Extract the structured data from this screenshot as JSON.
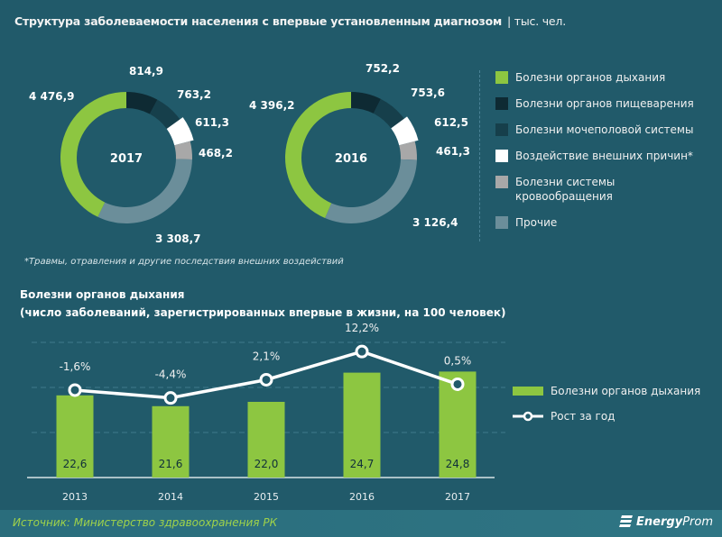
{
  "title": "Структура  заболеваемости  населения  с впервые  установленным  диагнозом",
  "title_unit": "| тыс. чел.",
  "colors": {
    "background": "#215a6a",
    "green": "#8dc641",
    "dark": "#0e2a33",
    "darkteal": "#163f4b",
    "white": "#ffffff",
    "gray": "#a8a8a8",
    "slate": "#6b8e9a"
  },
  "chart_data": [
    {
      "type": "pie",
      "title": "2017",
      "center_label": "2017",
      "categories": [
        "Болезни органов дыхания",
        "Болезни органов пищеварения",
        "Болезни мочеполовой системы",
        "Воздействие внешних причин*",
        "Болезни системы кровообращения",
        "Прочие"
      ],
      "values": [
        4476.9,
        814.9,
        763.2,
        611.3,
        468.2,
        3308.7
      ],
      "labels": [
        "4 476,9",
        "814,9",
        "763,2",
        "611,3",
        "468,2",
        "3 308,7"
      ]
    },
    {
      "type": "pie",
      "title": "2016",
      "center_label": "2016",
      "categories": [
        "Болезни органов дыхания",
        "Болезни органов пищеварения",
        "Болезни мочеполовой системы",
        "Воздействие внешних причин*",
        "Болезни системы кровообращения",
        "Прочие"
      ],
      "values": [
        4396.2,
        752.2,
        753.6,
        612.5,
        461.3,
        3126.4
      ],
      "labels": [
        "4 396,2",
        "752,2",
        "753,6",
        "612,5",
        "461,3",
        "3 126,4"
      ]
    },
    {
      "type": "bar",
      "title": "Болезни органов дыхания",
      "subtitle": "(число заболеваний,  зарегистрированных  впервые  в жизни, на 100 человек)",
      "categories": [
        "2013",
        "2014",
        "2015",
        "2016",
        "2017"
      ],
      "series": [
        {
          "name": "Болезни органов дыхания",
          "type": "bar",
          "values": [
            22.6,
            21.6,
            22.0,
            24.7,
            24.8
          ],
          "labels": [
            "22,6",
            "21,6",
            "22,0",
            "24,7",
            "24,8"
          ]
        },
        {
          "name": "Рост за год",
          "type": "line",
          "values": [
            -1.6,
            -4.4,
            2.1,
            12.2,
            0.5
          ],
          "labels": [
            "-1,6%",
            "-4,4%",
            "2,1%",
            "12,2%",
            "0,5%"
          ]
        }
      ],
      "grid": true
    }
  ],
  "legend": [
    {
      "label": "Болезни органов дыхания",
      "color": "#8dc641"
    },
    {
      "label": "Болезни органов пищеварения",
      "color": "#0e2a33"
    },
    {
      "label": "Болезни мочеполовой системы",
      "color": "#163f4b"
    },
    {
      "label": "Воздействие внешних причин*",
      "color": "#ffffff"
    },
    {
      "label": "Болезни системы кровообращения",
      "color": "#a8a8a8"
    },
    {
      "label": "Прочие",
      "color": "#6b8e9a"
    }
  ],
  "footnote": "*Травмы, отравления и другие последствия внешних воздействий",
  "bar_legend": {
    "bars": "Болезни органов дыхания",
    "line": "Рост за год"
  },
  "footer": {
    "source": "Источник: Министерство здравоохранения  РК",
    "brand_bold": "Energy",
    "brand_rest": "Prom"
  }
}
